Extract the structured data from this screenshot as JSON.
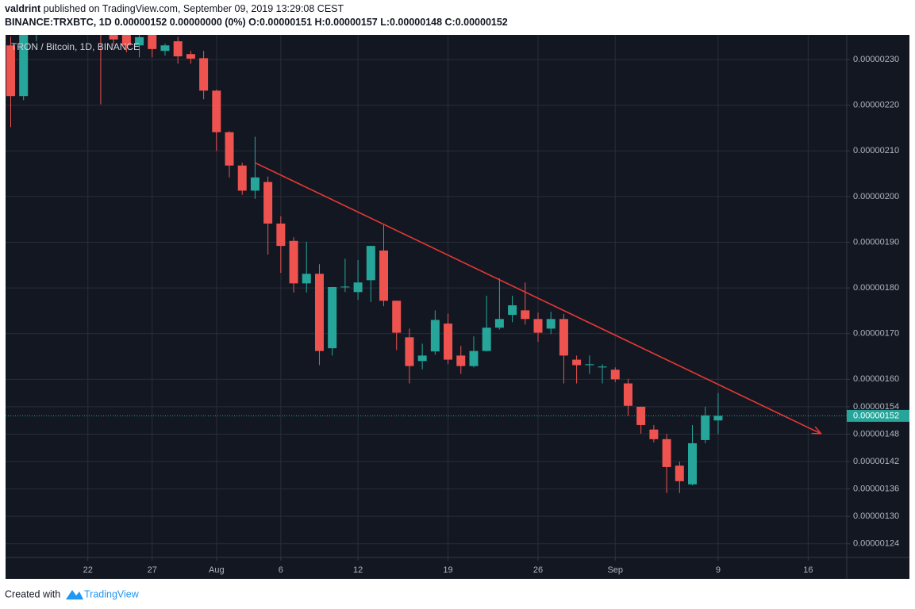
{
  "header": {
    "author": "valdrint",
    "published": "published on TradingView.com, September 09, 2019 13:29:08 CEST",
    "symbol": "BINANCE:TRXBTC, 1D",
    "info": "0.00000152 0.00000000 (0%) O:0.00000151 H:0.00000157 L:0.00000148 C:0.00000152"
  },
  "footer": {
    "text": "Created with",
    "brand": "TradingView"
  },
  "chart_data": {
    "type": "candlestick",
    "legend": "TRON / Bitcoin, 1D, BINANCE",
    "up_color": "#26a69a",
    "down_color": "#ef5350",
    "grid": true,
    "x": [
      "Jul 16",
      "Jul 17",
      "Jul 18",
      "Jul 19",
      "Jul 20",
      "Jul 21",
      "Jul 22",
      "Jul 23",
      "Jul 24",
      "Jul 25",
      "Jul 26",
      "Jul 27",
      "Jul 28",
      "Jul 29",
      "Jul 30",
      "Jul 31",
      "Aug 1",
      "Aug 2",
      "Aug 3",
      "Aug 4",
      "Aug 5",
      "Aug 6",
      "Aug 7",
      "Aug 8",
      "Aug 9",
      "Aug 10",
      "Aug 11",
      "Aug 12",
      "Aug 13",
      "Aug 14",
      "Aug 15",
      "Aug 16",
      "Aug 17",
      "Aug 18",
      "Aug 19",
      "Aug 20",
      "Aug 21",
      "Aug 22",
      "Aug 23",
      "Aug 24",
      "Aug 25",
      "Aug 26",
      "Aug 27",
      "Aug 28",
      "Aug 29",
      "Aug 30",
      "Aug 31",
      "Sep 1",
      "Sep 2",
      "Sep 3",
      "Sep 4",
      "Sep 5",
      "Sep 6",
      "Sep 7",
      "Sep 8",
      "Sep 9"
    ],
    "open": [
      2.331e-06,
      2.22e-06,
      2.36e-06,
      2.38e-06,
      2.41e-06,
      2.44e-06,
      2.4e-06,
      2.38e-06,
      2.37e-06,
      2.36e-06,
      2.331e-06,
      2.355e-06,
      2.319e-06,
      2.34e-06,
      2.312e-06,
      2.303e-06,
      2.232e-06,
      2.141e-06,
      2.068e-06,
      2.013e-06,
      2.032e-06,
      1.941e-06,
      1.903e-06,
      1.81e-06,
      1.831e-06,
      1.668e-06,
      1.802e-06,
      1.791e-06,
      1.817e-06,
      1.882e-06,
      1.772e-06,
      1.692e-06,
      1.64e-06,
      1.661e-06,
      1.722e-06,
      1.652e-06,
      1.629e-06,
      1.662e-06,
      1.713e-06,
      1.741e-06,
      1.751e-06,
      1.732e-06,
      1.711e-06,
      1.732e-06,
      1.643e-06,
      1.631e-06,
      1.626e-06,
      1.621e-06,
      1.591e-06,
      1.54e-06,
      1.49e-06,
      1.469e-06,
      1.411e-06,
      1.37e-06,
      1.467e-06,
      1.51e-06
    ],
    "high": [
      2.35e-06,
      2.38e-06,
      2.4e-06,
      2.43e-06,
      2.46e-06,
      2.47e-06,
      2.42e-06,
      2.4e-06,
      2.39e-06,
      2.37e-06,
      2.36e-06,
      2.36e-06,
      2.335e-06,
      2.35e-06,
      2.319e-06,
      2.319e-06,
      2.234e-06,
      2.143e-06,
      2.074e-06,
      2.131e-06,
      2.044e-06,
      1.957e-06,
      1.911e-06,
      1.901e-06,
      1.852e-06,
      1.802e-06,
      1.864e-06,
      1.861e-06,
      1.892e-06,
      1.939e-06,
      1.772e-06,
      1.711e-06,
      1.678e-06,
      1.751e-06,
      1.744e-06,
      1.673e-06,
      1.694e-06,
      1.783e-06,
      1.821e-06,
      1.783e-06,
      1.812e-06,
      1.746e-06,
      1.748e-06,
      1.743e-06,
      1.652e-06,
      1.652e-06,
      1.633e-06,
      1.626e-06,
      1.601e-06,
      1.54e-06,
      1.5e-06,
      1.48e-06,
      1.42e-06,
      1.5e-06,
      1.54e-06,
      1.57e-06
    ],
    "low": [
      2.152e-06,
      2.211e-06,
      2.34e-06,
      2.36e-06,
      2.39e-06,
      2.38e-06,
      2.36e-06,
      2.202e-06,
      2.33e-06,
      2.316e-06,
      2.305e-06,
      2.305e-06,
      2.309e-06,
      2.291e-06,
      2.291e-06,
      2.213e-06,
      2.1e-06,
      2.042e-06,
      2.004e-06,
      1.995e-06,
      1.873e-06,
      1.833e-06,
      1.79e-06,
      1.79e-06,
      1.631e-06,
      1.652e-06,
      1.791e-06,
      1.774e-06,
      1.769e-06,
      1.76e-06,
      1.664e-06,
      1.591e-06,
      1.622e-06,
      1.654e-06,
      1.633e-06,
      1.612e-06,
      1.626e-06,
      1.661e-06,
      1.709e-06,
      1.725e-06,
      1.72e-06,
      1.682e-06,
      1.699e-06,
      1.591e-06,
      1.591e-06,
      1.612e-06,
      1.591e-06,
      1.594e-06,
      1.521e-06,
      1.481e-06,
      1.462e-06,
      1.351e-06,
      1.351e-06,
      1.368e-06,
      1.46e-06,
      1.48e-06
    ],
    "close": [
      2.22e-06,
      2.36e-06,
      2.38e-06,
      2.41e-06,
      2.44e-06,
      2.4e-06,
      2.38e-06,
      2.37e-06,
      2.344e-06,
      2.331e-06,
      2.349e-06,
      2.323e-06,
      2.331e-06,
      2.307e-06,
      2.302e-06,
      2.232e-06,
      2.141e-06,
      2.068e-06,
      2.013e-06,
      2.042e-06,
      1.941e-06,
      1.892e-06,
      1.81e-06,
      1.831e-06,
      1.662e-06,
      1.802e-06,
      1.803e-06,
      1.812e-06,
      1.892e-06,
      1.772e-06,
      1.702e-06,
      1.629e-06,
      1.652e-06,
      1.73e-06,
      1.643e-06,
      1.629e-06,
      1.662e-06,
      1.713e-06,
      1.732e-06,
      1.762e-06,
      1.732e-06,
      1.702e-06,
      1.732e-06,
      1.652e-06,
      1.631e-06,
      1.633e-06,
      1.628e-06,
      1.6e-06,
      1.542e-06,
      1.5e-06,
      1.469e-06,
      1.408e-06,
      1.377e-06,
      1.46e-06,
      1.521e-06,
      1.52e-06
    ],
    "xlim": [
      "Jul 16",
      "Sep 19"
    ],
    "xticks": [
      {
        "value": "Jul 22",
        "label": "22"
      },
      {
        "value": "Jul 27",
        "label": "27"
      },
      {
        "value": "Aug 1",
        "label": "Aug"
      },
      {
        "value": "Aug 6",
        "label": "6"
      },
      {
        "value": "Aug 12",
        "label": "12"
      },
      {
        "value": "Aug 19",
        "label": "19"
      },
      {
        "value": "Aug 26",
        "label": "26"
      },
      {
        "value": "Sep 1",
        "label": "Sep"
      },
      {
        "value": "Sep 9",
        "label": "9"
      },
      {
        "value": "Sep 16",
        "label": "16"
      }
    ],
    "ylim": [
      1.21e-06,
      2.354e-06
    ],
    "yticks": [
      {
        "value": 2.3e-06,
        "label": "0.00000230"
      },
      {
        "value": 2.2e-06,
        "label": "0.00000220"
      },
      {
        "value": 2.1e-06,
        "label": "0.00000210"
      },
      {
        "value": 2e-06,
        "label": "0.00000200"
      },
      {
        "value": 1.9e-06,
        "label": "0.00000190"
      },
      {
        "value": 1.8e-06,
        "label": "0.00000180"
      },
      {
        "value": 1.7e-06,
        "label": "0.00000170"
      },
      {
        "value": 1.6e-06,
        "label": "0.00000160"
      },
      {
        "value": 1.54e-06,
        "label": "0.00000154"
      },
      {
        "value": 1.48e-06,
        "label": "0.00000148"
      },
      {
        "value": 1.42e-06,
        "label": "0.00000142"
      },
      {
        "value": 1.36e-06,
        "label": "0.00000136"
      },
      {
        "value": 1.3e-06,
        "label": "0.00000130"
      },
      {
        "value": 1.24e-06,
        "label": "0.00000124"
      }
    ],
    "last_price": {
      "value": 1.52e-06,
      "label": "0.00000152"
    },
    "trend_line": {
      "x": [
        "Aug 4",
        "Sep 17"
      ],
      "y": [
        2.074e-06,
        1.481e-06
      ],
      "color": "#e53935"
    }
  }
}
